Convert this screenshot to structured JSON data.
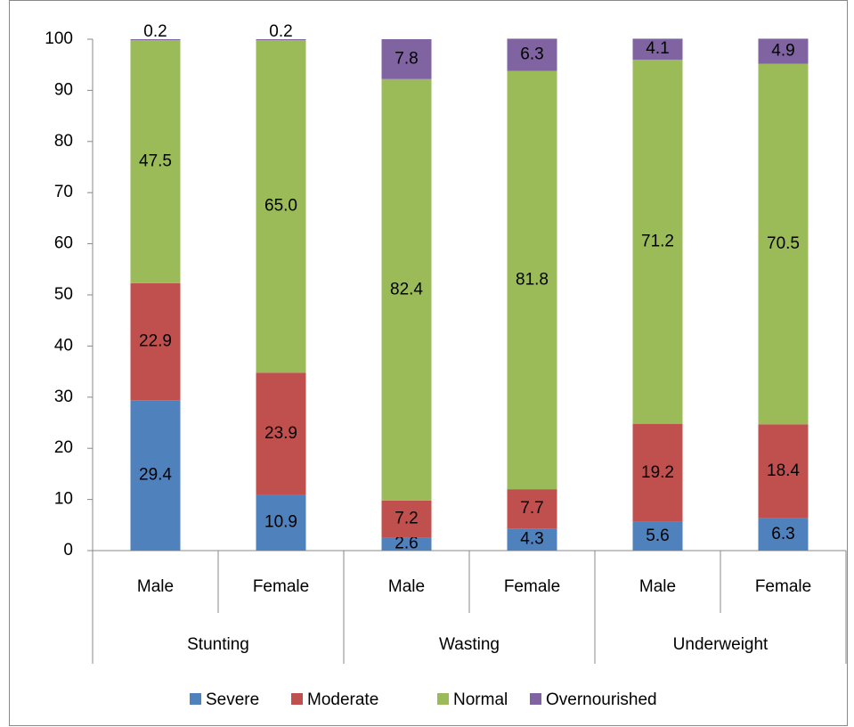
{
  "chart_data": {
    "type": "stacked_bar",
    "categories": [
      "Male",
      "Female",
      "Male",
      "Female",
      "Male",
      "Female"
    ],
    "groups": [
      "Stunting",
      "Wasting",
      "Underweight"
    ],
    "series": [
      {
        "name": "Severe",
        "color": "#4f81bd",
        "values": [
          29.4,
          10.9,
          2.6,
          4.3,
          5.6,
          6.3
        ]
      },
      {
        "name": "Moderate",
        "color": "#c0504d",
        "values": [
          22.9,
          23.9,
          7.2,
          7.7,
          19.2,
          18.4
        ]
      },
      {
        "name": "Normal",
        "color": "#9bbb59",
        "values": [
          47.5,
          65.0,
          82.4,
          81.8,
          71.2,
          70.5
        ],
        "value_labels": [
          "47.5",
          "65.0",
          "82.4",
          "81.8",
          "71.2",
          "70.5"
        ]
      },
      {
        "name": "Overnourished",
        "color": "#8064a2",
        "values": [
          0.2,
          0.2,
          7.8,
          6.3,
          4.1,
          4.9
        ]
      }
    ],
    "ylim": [
      0,
      100
    ],
    "yticks": [
      0,
      10,
      20,
      30,
      40,
      50,
      60,
      70,
      80,
      90,
      100
    ],
    "grid": false,
    "legend": "bottom"
  }
}
